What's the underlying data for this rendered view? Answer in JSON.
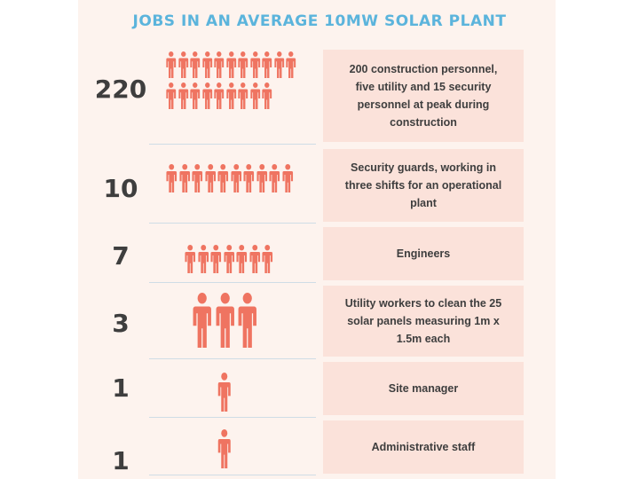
{
  "title": "JOBS IN AN AVERAGE 10MW SOLAR PLANT",
  "icon": "person-icon",
  "colors": {
    "title": "#5bb4dc",
    "icon": "#ef7461",
    "box": "#fbe2da",
    "panel": "#fdf3ee",
    "text": "#3e3e3e"
  },
  "rows": [
    {
      "count": "220",
      "icons_shown": 20,
      "description": "200 construction personnel, five utility and 15 security personnel at  peak during construction"
    },
    {
      "count": "10",
      "icons_shown": 10,
      "description": "Security guards, working in three shifts for an operational plant"
    },
    {
      "count": "7",
      "icons_shown": 7,
      "description": "Engineers"
    },
    {
      "count": "3",
      "icons_shown": 3,
      "description": "Utility workers to clean the 25 solar panels measuring 1m x 1.5m each"
    },
    {
      "count": "1",
      "icons_shown": 1,
      "description": "Site manager"
    },
    {
      "count": "1",
      "icons_shown": 1,
      "description": "Administrative staff"
    }
  ]
}
